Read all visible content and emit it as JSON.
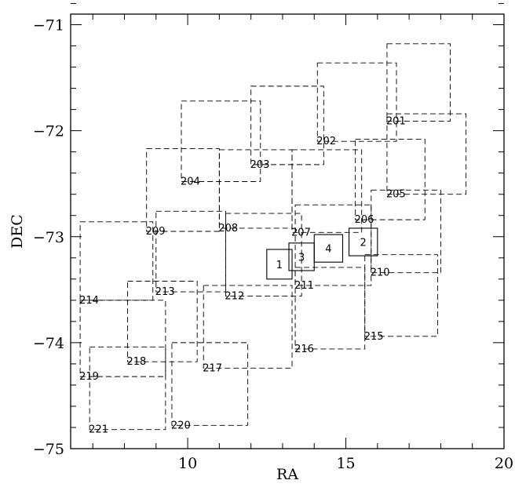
{
  "chart_data": {
    "type": "scatter",
    "title": "",
    "xlabel": "RA",
    "ylabel": "DEC",
    "xlim": [
      6.3,
      20
    ],
    "ylim": [
      -75,
      -70.9
    ],
    "xticks": [
      10,
      15,
      20
    ],
    "xtick_labels": [
      "10",
      "15",
      "20"
    ],
    "yticks": [
      -75,
      -74,
      -73,
      -72,
      -71
    ],
    "ytick_labels": [
      "−75",
      "−74",
      "−73",
      "−72",
      "−71"
    ],
    "grid": false,
    "fields": [
      {
        "name": "201",
        "x0": 16.3,
        "x1": 18.3,
        "y0": -71.91,
        "y1": -71.18
      },
      {
        "name": "202",
        "x0": 14.1,
        "x1": 16.6,
        "y0": -72.1,
        "y1": -71.36
      },
      {
        "name": "203",
        "x0": 12.0,
        "x1": 14.3,
        "y0": -72.32,
        "y1": -71.58
      },
      {
        "name": "204",
        "x0": 9.8,
        "x1": 12.3,
        "y0": -72.48,
        "y1": -71.72
      },
      {
        "name": "205",
        "x0": 16.3,
        "x1": 18.8,
        "y0": -72.6,
        "y1": -71.84
      },
      {
        "name": "206",
        "x0": 15.3,
        "x1": 17.5,
        "y0": -72.84,
        "y1": -72.08
      },
      {
        "name": "207",
        "x0": 13.3,
        "x1": 15.5,
        "y0": -72.96,
        "y1": -72.18
      },
      {
        "name": "208",
        "x0": 11.0,
        "x1": 13.3,
        "y0": -72.92,
        "y1": -72.18
      },
      {
        "name": "209",
        "x0": 8.7,
        "x1": 11.0,
        "y0": -72.95,
        "y1": -72.17
      },
      {
        "name": "210",
        "x0": 15.8,
        "x1": 18.0,
        "y0": -73.34,
        "y1": -72.56
      },
      {
        "name": "211",
        "x0": 13.4,
        "x1": 15.8,
        "y0": -73.46,
        "y1": -72.7
      },
      {
        "name": "212",
        "x0": 11.2,
        "x1": 13.6,
        "y0": -73.56,
        "y1": -72.78
      },
      {
        "name": "213",
        "x0": 9.0,
        "x1": 11.2,
        "y0": -73.52,
        "y1": -72.76
      },
      {
        "name": "214",
        "x0": 6.6,
        "x1": 8.9,
        "y0": -73.6,
        "y1": -72.86
      },
      {
        "name": "215",
        "x0": 15.6,
        "x1": 17.9,
        "y0": -73.94,
        "y1": -73.17
      },
      {
        "name": "216",
        "x0": 13.4,
        "x1": 15.6,
        "y0": -74.06,
        "y1": -73.29
      },
      {
        "name": "217",
        "x0": 10.5,
        "x1": 13.3,
        "y0": -74.24,
        "y1": -73.46
      },
      {
        "name": "218",
        "x0": 8.1,
        "x1": 10.3,
        "y0": -74.18,
        "y1": -73.42
      },
      {
        "name": "219",
        "x0": 6.6,
        "x1": 9.3,
        "y0": -74.32,
        "y1": -73.6
      },
      {
        "name": "220",
        "x0": 9.5,
        "x1": 11.9,
        "y0": -74.78,
        "y1": -74.0
      },
      {
        "name": "221",
        "x0": 6.9,
        "x1": 9.3,
        "y0": -74.82,
        "y1": -74.04
      }
    ],
    "chips": [
      {
        "name": "1",
        "x0": 12.5,
        "x1": 13.3,
        "y0": -73.4,
        "y1": -73.12
      },
      {
        "name": "2",
        "x0": 15.1,
        "x1": 16.0,
        "y0": -73.18,
        "y1": -72.92
      },
      {
        "name": "3",
        "x0": 13.2,
        "x1": 14.0,
        "y0": -73.32,
        "y1": -73.06
      },
      {
        "name": "4",
        "x0": 14.0,
        "x1": 14.9,
        "y0": -73.24,
        "y1": -72.98
      }
    ]
  }
}
